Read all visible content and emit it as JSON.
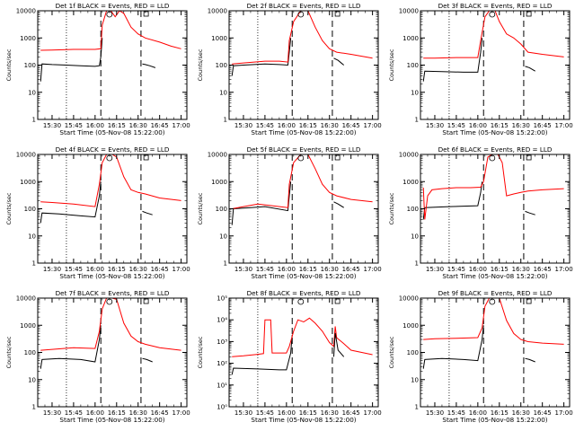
{
  "page": {
    "title": ""
  },
  "common": {
    "xlabel": "Start Time (05-Nov-08 15:22:00)",
    "ylabel": "Counts/sec",
    "x_ticks": [
      "15:30",
      "15:45",
      "16:00",
      "16:15",
      "16:30",
      "16:45",
      "17:00"
    ],
    "x_tick_minutes": [
      30,
      45,
      60,
      75,
      90,
      105,
      120
    ],
    "xlim_minutes_after_15h": [
      20,
      124
    ],
    "dotted_line_minute": 40,
    "dashed_line_minutes": [
      64,
      92
    ],
    "colors": {
      "events": "#000000",
      "lld": "#ff0000",
      "axes": "#000000"
    }
  },
  "chart_data": [
    {
      "id": "det1f",
      "type": "line",
      "title": "Det 1f BLACK = Events, RED = LLD",
      "ylabel": "Counts/sec",
      "xlabel": "Start Time (05-Nov-08 15:22:00)",
      "yscale": "log",
      "ylim": [
        1,
        10000
      ],
      "y_ticks": [
        "1",
        "10",
        "100",
        "1000",
        "10000"
      ],
      "x_ticks": [
        "15:30",
        "15:45",
        "16:00",
        "16:15",
        "16:30",
        "16:45",
        "17:00"
      ],
      "series": [
        {
          "name": "Events",
          "color": "#000000",
          "x": [
            "15:22",
            "15:23",
            "15:30",
            "15:40",
            "15:50",
            "16:00",
            "16:03",
            "16:04",
            "16:05"
          ],
          "y": [
            25,
            110,
            105,
            100,
            95,
            90,
            95,
            200,
            1000
          ]
        },
        {
          "name": "LLD",
          "color": "#ff0000",
          "x": [
            "15:22",
            "15:30",
            "15:45",
            "16:00",
            "16:04",
            "16:05",
            "16:08",
            "16:11",
            "16:14",
            "16:17",
            "16:20",
            "16:25",
            "16:30",
            "16:35",
            "16:45",
            "16:53",
            "17:00"
          ],
          "y": [
            350,
            360,
            380,
            380,
            400,
            3000,
            10000,
            10000,
            6000,
            10000,
            8000,
            2500,
            1400,
            1000,
            700,
            500,
            400
          ]
        },
        {
          "name": "",
          "color": "#000000",
          "x": [
            "16:33",
            "16:35",
            "16:38",
            "16:42"
          ],
          "y": [
            110,
            105,
            95,
            80
          ]
        }
      ]
    },
    {
      "id": "det2f",
      "type": "line",
      "title": "Det 2f BLACK = Events, RED = LLD",
      "ylabel": "Counts/sec",
      "xlabel": "Start Time (05-Nov-08 15:22:00)",
      "yscale": "log",
      "ylim": [
        1,
        10000
      ],
      "y_ticks": [
        "1",
        "10",
        "100",
        "1000",
        "10000"
      ],
      "x_ticks": [
        "15:30",
        "15:45",
        "16:00",
        "16:15",
        "16:30",
        "16:45",
        "17:00"
      ],
      "series": [
        {
          "name": "Events",
          "color": "#000000",
          "x": [
            "15:22",
            "15:23",
            "15:30",
            "15:45",
            "15:55",
            "16:01",
            "16:02",
            "16:03"
          ],
          "y": [
            40,
            95,
            100,
            110,
            105,
            100,
            300,
            1000
          ]
        },
        {
          "name": "LLD",
          "color": "#ff0000",
          "x": [
            "15:22",
            "15:30",
            "15:45",
            "15:55",
            "16:01",
            "16:02",
            "16:05",
            "16:10",
            "16:15",
            "16:20",
            "16:25",
            "16:30",
            "16:35",
            "16:45",
            "17:00"
          ],
          "y": [
            110,
            120,
            140,
            140,
            130,
            800,
            4000,
            10000,
            10000,
            2500,
            800,
            400,
            300,
            250,
            180
          ]
        },
        {
          "name": "",
          "color": "#000000",
          "x": [
            "16:33",
            "16:36",
            "16:40"
          ],
          "y": [
            180,
            150,
            100
          ]
        }
      ]
    },
    {
      "id": "det3f",
      "type": "line",
      "title": "Det 3f BLACK = Events, RED = LLD",
      "ylabel": "Counts/sec",
      "xlabel": "Start Time (05-Nov-08 15:22:00)",
      "yscale": "log",
      "ylim": [
        1,
        10000
      ],
      "y_ticks": [
        "1",
        "10",
        "100",
        "1000",
        "10000"
      ],
      "x_ticks": [
        "15:30",
        "15:45",
        "16:00",
        "16:15",
        "16:30",
        "16:45",
        "17:00"
      ],
      "series": [
        {
          "name": "Events",
          "color": "#000000",
          "x": [
            "15:22",
            "15:23",
            "15:35",
            "15:50",
            "16:00",
            "16:02",
            "16:03"
          ],
          "y": [
            25,
            60,
            58,
            55,
            55,
            300,
            1000
          ]
        },
        {
          "name": "LLD",
          "color": "#ff0000",
          "x": [
            "15:22",
            "15:30",
            "15:45",
            "16:00",
            "16:02",
            "16:05",
            "16:08",
            "16:12",
            "16:15",
            "16:20",
            "16:25",
            "16:30",
            "16:35",
            "16:45",
            "17:00"
          ],
          "y": [
            180,
            180,
            190,
            190,
            800,
            6000,
            10000,
            10000,
            4000,
            1400,
            1000,
            600,
            300,
            250,
            200
          ]
        },
        {
          "name": "",
          "color": "#000000",
          "x": [
            "16:33",
            "16:36",
            "16:40"
          ],
          "y": [
            90,
            80,
            60
          ]
        }
      ]
    },
    {
      "id": "det4f",
      "type": "line",
      "title": "Det 4f BLACK = Events, RED = LLD",
      "ylabel": "Counts/sec",
      "xlabel": "Start Time (05-Nov-08 15:22:00)",
      "yscale": "log",
      "ylim": [
        1,
        10000
      ],
      "y_ticks": [
        "1",
        "10",
        "100",
        "1000",
        "10000"
      ],
      "x_ticks": [
        "15:30",
        "15:45",
        "16:00",
        "16:15",
        "16:30",
        "16:45",
        "17:00"
      ],
      "series": [
        {
          "name": "Events",
          "color": "#000000",
          "x": [
            "15:22",
            "15:23",
            "15:35",
            "15:50",
            "16:00",
            "16:03",
            "16:04"
          ],
          "y": [
            30,
            70,
            65,
            55,
            50,
            300,
            1000
          ]
        },
        {
          "name": "LLD",
          "color": "#ff0000",
          "x": [
            "15:22",
            "15:30",
            "15:45",
            "16:00",
            "16:03",
            "16:05",
            "16:08",
            "16:12",
            "16:15",
            "16:20",
            "16:25",
            "16:30",
            "16:35",
            "16:45",
            "17:00"
          ],
          "y": [
            180,
            170,
            150,
            120,
            800,
            5000,
            10000,
            10000,
            8000,
            1500,
            500,
            400,
            350,
            250,
            200
          ]
        },
        {
          "name": "",
          "color": "#000000",
          "x": [
            "16:33",
            "16:36",
            "16:40"
          ],
          "y": [
            80,
            70,
            60
          ]
        }
      ]
    },
    {
      "id": "det5f",
      "type": "line",
      "title": "Det 5f BLACK = Events, RED = LLD",
      "ylabel": "Counts/sec",
      "xlabel": "Start Time (05-Nov-08 15:22:00)",
      "yscale": "log",
      "ylim": [
        1,
        10000
      ],
      "y_ticks": [
        "1",
        "10",
        "100",
        "1000",
        "10000"
      ],
      "x_ticks": [
        "15:30",
        "15:45",
        "16:00",
        "16:15",
        "16:30",
        "16:45",
        "17:00"
      ],
      "series": [
        {
          "name": "Events",
          "color": "#000000",
          "x": [
            "15:22",
            "15:23",
            "15:35",
            "15:45",
            "16:01",
            "16:02",
            "16:03"
          ],
          "y": [
            25,
            100,
            110,
            120,
            85,
            300,
            1000
          ]
        },
        {
          "name": "LLD",
          "color": "#ff0000",
          "x": [
            "15:22",
            "15:30",
            "15:40",
            "15:50",
            "16:01",
            "16:02",
            "16:05",
            "16:10",
            "16:15",
            "16:20",
            "16:25",
            "16:30",
            "16:35",
            "16:45",
            "17:00"
          ],
          "y": [
            100,
            120,
            150,
            130,
            110,
            800,
            5000,
            10000,
            10000,
            3000,
            800,
            400,
            300,
            220,
            180
          ]
        },
        {
          "name": "",
          "color": "#000000",
          "x": [
            "16:33",
            "16:36",
            "16:40"
          ],
          "y": [
            180,
            150,
            110
          ]
        }
      ]
    },
    {
      "id": "det6f",
      "type": "line",
      "title": "Det 6f BLACK = Events, RED = LLD",
      "ylabel": "Counts/sec",
      "xlabel": "Start Time (05-Nov-08 15:22:00)",
      "yscale": "log",
      "ylim": [
        1,
        10000
      ],
      "y_ticks": [
        "1",
        "10",
        "100",
        "1000",
        "10000"
      ],
      "x_ticks": [
        "15:30",
        "15:45",
        "16:00",
        "16:15",
        "16:30",
        "16:45",
        "17:00"
      ],
      "series": [
        {
          "name": "Events",
          "color": "#000000",
          "x": [
            "15:22",
            "15:23",
            "15:40",
            "16:00",
            "16:02",
            "16:03"
          ],
          "y": [
            40,
            110,
            120,
            130,
            400,
            1000
          ]
        },
        {
          "name": "LLD",
          "color": "#ff0000",
          "x": [
            "15:22",
            "15:23",
            "15:25",
            "15:28",
            "15:35",
            "15:45",
            "15:55",
            "16:02",
            "16:04",
            "16:07",
            "16:10",
            "16:14",
            "16:17",
            "16:20",
            "16:25",
            "16:30",
            "16:35",
            "16:45",
            "17:00"
          ],
          "y": [
            600,
            40,
            300,
            500,
            550,
            600,
            600,
            620,
            1000,
            8000,
            10000,
            10000,
            5000,
            300,
            350,
            400,
            450,
            500,
            550
          ]
        },
        {
          "name": "",
          "color": "#000000",
          "x": [
            "16:33",
            "16:36",
            "16:40"
          ],
          "y": [
            80,
            70,
            60
          ]
        }
      ]
    },
    {
      "id": "det7f",
      "type": "line",
      "title": "Det 7f BLACK = Events, RED = LLD",
      "ylabel": "Counts/sec",
      "xlabel": "Start Time (05-Nov-08 15:22:00)",
      "yscale": "log",
      "ylim": [
        1,
        10000
      ],
      "y_ticks": [
        "1",
        "10",
        "100",
        "1000",
        "10000"
      ],
      "x_ticks": [
        "15:30",
        "15:45",
        "16:00",
        "16:15",
        "16:30",
        "16:45",
        "17:00"
      ],
      "series": [
        {
          "name": "Events",
          "color": "#000000",
          "x": [
            "15:22",
            "15:23",
            "15:35",
            "15:50",
            "16:00",
            "16:03",
            "16:04"
          ],
          "y": [
            25,
            55,
            60,
            55,
            45,
            300,
            1000
          ]
        },
        {
          "name": "LLD",
          "color": "#ff0000",
          "x": [
            "15:22",
            "15:30",
            "15:45",
            "16:00",
            "16:03",
            "16:05",
            "16:08",
            "16:12",
            "16:15",
            "16:20",
            "16:25",
            "16:30",
            "16:35",
            "16:45",
            "17:00"
          ],
          "y": [
            120,
            130,
            150,
            140,
            600,
            4000,
            10000,
            10000,
            9000,
            1200,
            400,
            250,
            200,
            150,
            120
          ]
        },
        {
          "name": "",
          "color": "#000000",
          "x": [
            "16:33",
            "16:36",
            "16:40"
          ],
          "y": [
            60,
            55,
            45
          ]
        }
      ]
    },
    {
      "id": "det8f",
      "type": "line",
      "title": "Det 8f BLACK = Events, RED = LLD",
      "ylabel": "Counts/sec",
      "xlabel": "Start Time (05-Nov-08 15:22:00)",
      "yscale": "log",
      "ylim": [
        1,
        100000
      ],
      "y_ticks": [
        "10⁰",
        "10¹",
        "10²",
        "10³",
        "10⁴",
        "10⁵"
      ],
      "x_ticks": [
        "15:30",
        "15:45",
        "16:00",
        "16:15",
        "16:30",
        "16:45",
        "17:00"
      ],
      "series": [
        {
          "name": "Events",
          "color": "#000000",
          "x": [
            "15:22",
            "15:23",
            "15:40",
            "15:55",
            "16:00",
            "16:03",
            "16:04"
          ],
          "y": [
            30,
            60,
            55,
            50,
            50,
            300,
            2000
          ]
        },
        {
          "name": "LLD",
          "color": "#ff0000",
          "x": [
            "15:22",
            "15:30",
            "15:40",
            "15:44",
            "15:45",
            "15:49",
            "15:50",
            "16:00",
            "16:02",
            "16:05",
            "16:08",
            "16:12",
            "16:16",
            "16:20",
            "16:25",
            "16:30",
            "16:33",
            "16:34",
            "16:35",
            "16:40",
            "16:45",
            "17:00"
          ],
          "y": [
            200,
            220,
            260,
            280,
            10000,
            10000,
            300,
            300,
            600,
            3000,
            10000,
            8000,
            12000,
            7000,
            3000,
            900,
            600,
            5000,
            1500,
            800,
            400,
            250
          ]
        },
        {
          "name": "",
          "color": "#000000",
          "x": [
            "16:33",
            "16:34",
            "16:36",
            "16:40"
          ],
          "y": [
            200,
            2500,
            400,
            200
          ]
        }
      ]
    },
    {
      "id": "det9f",
      "type": "line",
      "title": "Det 9f BLACK = Events, RED = LLD",
      "ylabel": "Counts/sec",
      "xlabel": "Start Time (05-Nov-08 15:22:00)",
      "yscale": "log",
      "ylim": [
        1,
        10000
      ],
      "y_ticks": [
        "1",
        "10",
        "100",
        "1000",
        "10000"
      ],
      "x_ticks": [
        "15:30",
        "15:45",
        "16:00",
        "16:15",
        "16:30",
        "16:45",
        "17:00"
      ],
      "series": [
        {
          "name": "Events",
          "color": "#000000",
          "x": [
            "15:22",
            "15:23",
            "15:35",
            "15:50",
            "16:00",
            "16:03",
            "16:04"
          ],
          "y": [
            25,
            55,
            60,
            55,
            50,
            300,
            1000
          ]
        },
        {
          "name": "LLD",
          "color": "#ff0000",
          "x": [
            "15:22",
            "15:30",
            "15:45",
            "16:00",
            "16:03",
            "16:05",
            "16:08",
            "16:12",
            "16:15",
            "16:20",
            "16:25",
            "16:30",
            "16:35",
            "16:45",
            "17:00"
          ],
          "y": [
            300,
            320,
            330,
            350,
            800,
            5000,
            10000,
            10000,
            10000,
            1500,
            500,
            300,
            250,
            220,
            200
          ]
        },
        {
          "name": "",
          "color": "#000000",
          "x": [
            "16:33",
            "16:36",
            "16:40"
          ],
          "y": [
            60,
            55,
            45
          ]
        }
      ]
    }
  ]
}
